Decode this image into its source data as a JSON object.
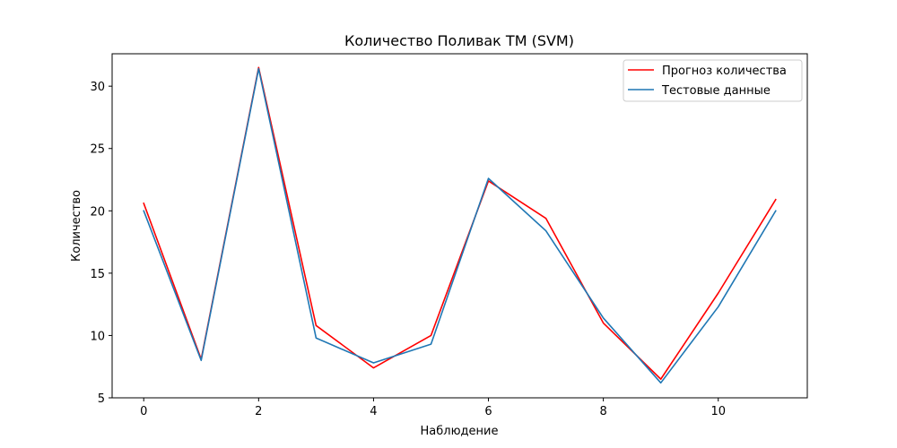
{
  "chart_data": {
    "type": "line",
    "title": "Количество Поливак ТМ (SVM)",
    "xlabel": "Наблюдение",
    "ylabel": "Количество",
    "x": [
      0,
      1,
      2,
      3,
      4,
      5,
      6,
      7,
      8,
      9,
      10,
      11
    ],
    "xlim": [
      -0.55,
      11.55
    ],
    "ylim": [
      5.0,
      32.6
    ],
    "xticks": [
      0,
      2,
      4,
      6,
      8,
      10
    ],
    "yticks": [
      5,
      10,
      15,
      20,
      25,
      30
    ],
    "xtick_labels": [
      "0",
      "2",
      "4",
      "6",
      "8",
      "10"
    ],
    "ytick_labels": [
      "5",
      "10",
      "15",
      "20",
      "25",
      "30"
    ],
    "grid": false,
    "legend_position": "top-right",
    "series": [
      {
        "name": "Прогноз количества",
        "color": "#ff0000",
        "values": [
          20.6,
          8.1,
          31.5,
          10.8,
          7.4,
          10.0,
          22.4,
          19.4,
          11.0,
          6.5,
          13.4,
          20.9
        ]
      },
      {
        "name": "Тестовые данные",
        "color": "#1f77b4",
        "values": [
          20.0,
          8.0,
          31.4,
          9.8,
          7.8,
          9.3,
          22.6,
          18.4,
          11.4,
          6.2,
          12.3,
          20.0
        ]
      }
    ]
  }
}
